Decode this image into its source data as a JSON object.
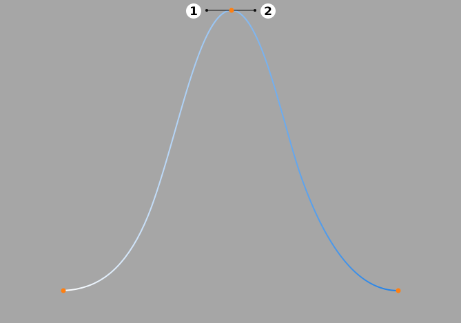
{
  "curve_editor": {
    "background_color": "#a6a6a6",
    "gradient_start_color": "#ffffff",
    "gradient_end_color": "#1e7fe6",
    "anchor_color": "#ff7f10",
    "tangent_handle_color": "#111111",
    "handles": {
      "left": {
        "label": "1"
      },
      "right": {
        "label": "2"
      }
    }
  }
}
